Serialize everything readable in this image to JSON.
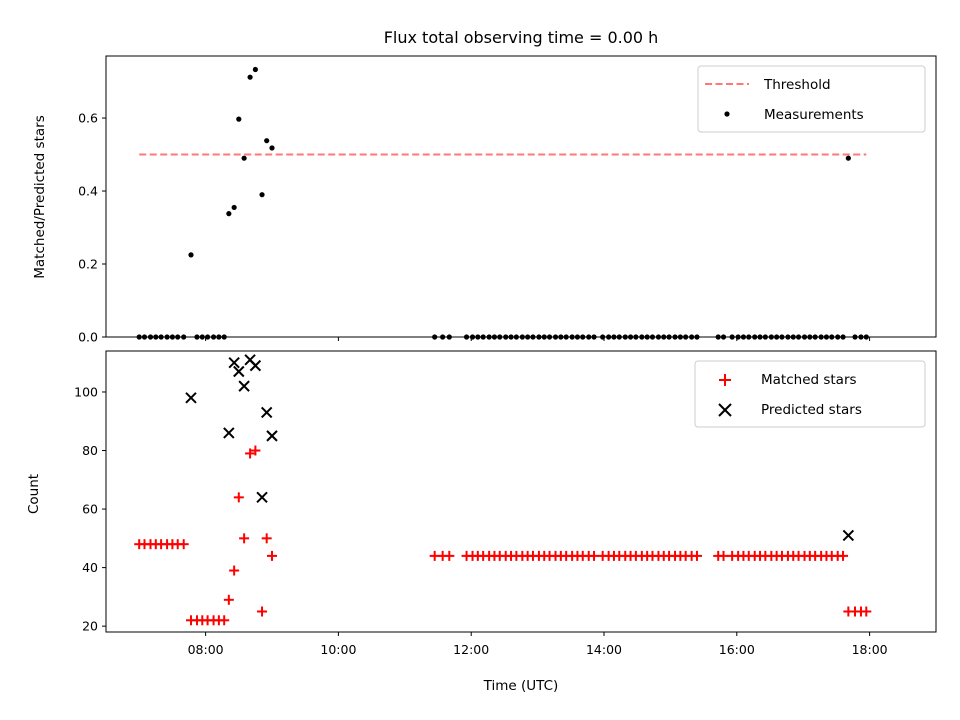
{
  "chart_data": [
    {
      "type": "scatter",
      "title": "Flux total observing time = 0.00 h",
      "xlabel": "",
      "ylabel": "Matched/Predicted stars",
      "x_unit": "hours (UTC)",
      "xlim": [
        6.5,
        19.0
      ],
      "ylim": [
        0.0,
        0.77
      ],
      "yticks": [
        "0.0",
        "0.2",
        "0.4",
        "0.6"
      ],
      "ytick_values": [
        0.0,
        0.2,
        0.4,
        0.6
      ],
      "xticks_values": [
        8,
        10,
        12,
        14,
        16,
        18
      ],
      "legend_position": "top-right",
      "legend": [
        "Threshold",
        "Measurements"
      ],
      "colors": {
        "threshold": "#ff7777",
        "measurements": "#000000"
      },
      "threshold": {
        "name": "Threshold",
        "y": 0.5,
        "x": [
          7.0,
          17.95
        ],
        "style": "dashed"
      },
      "series": [
        {
          "name": "Measurements",
          "x": [
            7.0,
            7.08,
            7.17,
            7.25,
            7.33,
            7.42,
            7.5,
            7.58,
            7.67,
            7.78,
            7.87,
            7.95,
            8.03,
            8.12,
            8.2,
            8.28,
            8.35,
            8.43,
            8.5,
            8.58,
            8.67,
            8.75,
            8.85,
            8.92,
            9.0,
            11.45,
            11.57,
            11.67,
            11.93,
            12.02,
            12.1,
            12.18,
            12.27,
            12.35,
            12.43,
            12.52,
            12.6,
            12.68,
            12.77,
            12.85,
            12.93,
            13.02,
            13.1,
            13.18,
            13.27,
            13.35,
            13.43,
            13.52,
            13.6,
            13.68,
            13.77,
            13.85,
            13.98,
            14.07,
            14.15,
            14.23,
            14.32,
            14.4,
            14.48,
            14.57,
            14.65,
            14.73,
            14.82,
            14.9,
            14.98,
            15.07,
            15.15,
            15.23,
            15.32,
            15.4,
            15.72,
            15.8,
            15.93,
            16.02,
            16.1,
            16.18,
            16.27,
            16.35,
            16.43,
            16.52,
            16.6,
            16.68,
            16.77,
            16.85,
            16.93,
            17.02,
            17.1,
            17.18,
            17.27,
            17.35,
            17.43,
            17.52,
            17.6,
            17.68,
            17.78,
            17.87,
            17.95
          ],
          "y": [
            0.0,
            0.0,
            0.0,
            0.0,
            0.0,
            0.0,
            0.0,
            0.0,
            0.0,
            0.225,
            0.0,
            0.0,
            0.0,
            0.0,
            0.0,
            0.0,
            0.338,
            0.355,
            0.597,
            0.49,
            0.712,
            0.733,
            0.39,
            0.538,
            0.518,
            0.0,
            0.0,
            0.0,
            0.0,
            0.0,
            0.0,
            0.0,
            0.0,
            0.0,
            0.0,
            0.0,
            0.0,
            0.0,
            0.0,
            0.0,
            0.0,
            0.0,
            0.0,
            0.0,
            0.0,
            0.0,
            0.0,
            0.0,
            0.0,
            0.0,
            0.0,
            0.0,
            0.0,
            0.0,
            0.0,
            0.0,
            0.0,
            0.0,
            0.0,
            0.0,
            0.0,
            0.0,
            0.0,
            0.0,
            0.0,
            0.0,
            0.0,
            0.0,
            0.0,
            0.0,
            0.0,
            0.0,
            0.0,
            0.0,
            0.0,
            0.0,
            0.0,
            0.0,
            0.0,
            0.0,
            0.0,
            0.0,
            0.0,
            0.0,
            0.0,
            0.0,
            0.0,
            0.0,
            0.0,
            0.0,
            0.0,
            0.0,
            0.0,
            0.49,
            0.0,
            0.0,
            0.0
          ]
        }
      ]
    },
    {
      "type": "scatter",
      "title": "",
      "xlabel": "Time (UTC)",
      "ylabel": "Count",
      "x_unit": "hours (UTC)",
      "xlim": [
        6.5,
        19.0
      ],
      "ylim": [
        18,
        114
      ],
      "yticks": [
        "20",
        "40",
        "60",
        "80",
        "100"
      ],
      "ytick_values": [
        20,
        40,
        60,
        80,
        100
      ],
      "xticks": [
        "08:00",
        "10:00",
        "12:00",
        "14:00",
        "16:00",
        "18:00"
      ],
      "xticks_values": [
        8,
        10,
        12,
        14,
        16,
        18
      ],
      "legend_position": "top-right",
      "legend": [
        "Matched stars",
        "Predicted stars"
      ],
      "colors": {
        "matched": "#ff0000",
        "predicted": "#000000"
      },
      "series": [
        {
          "name": "Matched stars",
          "marker": "+",
          "x": [
            7.0,
            7.08,
            7.17,
            7.25,
            7.33,
            7.42,
            7.5,
            7.58,
            7.67,
            7.78,
            7.87,
            7.95,
            8.03,
            8.12,
            8.2,
            8.28,
            8.35,
            8.43,
            8.5,
            8.58,
            8.67,
            8.75,
            8.85,
            8.92,
            9.0,
            11.45,
            11.57,
            11.67,
            11.93,
            12.02,
            12.1,
            12.18,
            12.27,
            12.35,
            12.43,
            12.52,
            12.6,
            12.68,
            12.77,
            12.85,
            12.93,
            13.02,
            13.1,
            13.18,
            13.27,
            13.35,
            13.43,
            13.52,
            13.6,
            13.68,
            13.77,
            13.85,
            13.98,
            14.07,
            14.15,
            14.23,
            14.32,
            14.4,
            14.48,
            14.57,
            14.65,
            14.73,
            14.82,
            14.9,
            14.98,
            15.07,
            15.15,
            15.23,
            15.32,
            15.4,
            15.72,
            15.8,
            15.93,
            16.02,
            16.1,
            16.18,
            16.27,
            16.35,
            16.43,
            16.52,
            16.6,
            16.68,
            16.77,
            16.85,
            16.93,
            17.02,
            17.1,
            17.18,
            17.27,
            17.35,
            17.43,
            17.52,
            17.6,
            17.68,
            17.78,
            17.87,
            17.95
          ],
          "y": [
            48,
            48,
            48,
            48,
            48,
            48,
            48,
            48,
            48,
            22,
            22,
            22,
            22,
            22,
            22,
            22,
            29,
            39,
            64,
            50,
            79,
            80,
            25,
            50,
            44,
            44,
            44,
            44,
            44,
            44,
            44,
            44,
            44,
            44,
            44,
            44,
            44,
            44,
            44,
            44,
            44,
            44,
            44,
            44,
            44,
            44,
            44,
            44,
            44,
            44,
            44,
            44,
            44,
            44,
            44,
            44,
            44,
            44,
            44,
            44,
            44,
            44,
            44,
            44,
            44,
            44,
            44,
            44,
            44,
            44,
            44,
            44,
            44,
            44,
            44,
            44,
            44,
            44,
            44,
            44,
            44,
            44,
            44,
            44,
            44,
            44,
            44,
            44,
            44,
            44,
            44,
            44,
            44,
            25,
            25,
            25,
            25
          ]
        },
        {
          "name": "Predicted stars",
          "marker": "x",
          "x": [
            7.78,
            8.35,
            8.43,
            8.5,
            8.58,
            8.67,
            8.75,
            8.85,
            8.92,
            9.0,
            17.68
          ],
          "y": [
            98,
            86,
            110,
            107,
            102,
            111,
            109,
            64,
            93,
            85,
            51
          ]
        }
      ]
    }
  ]
}
